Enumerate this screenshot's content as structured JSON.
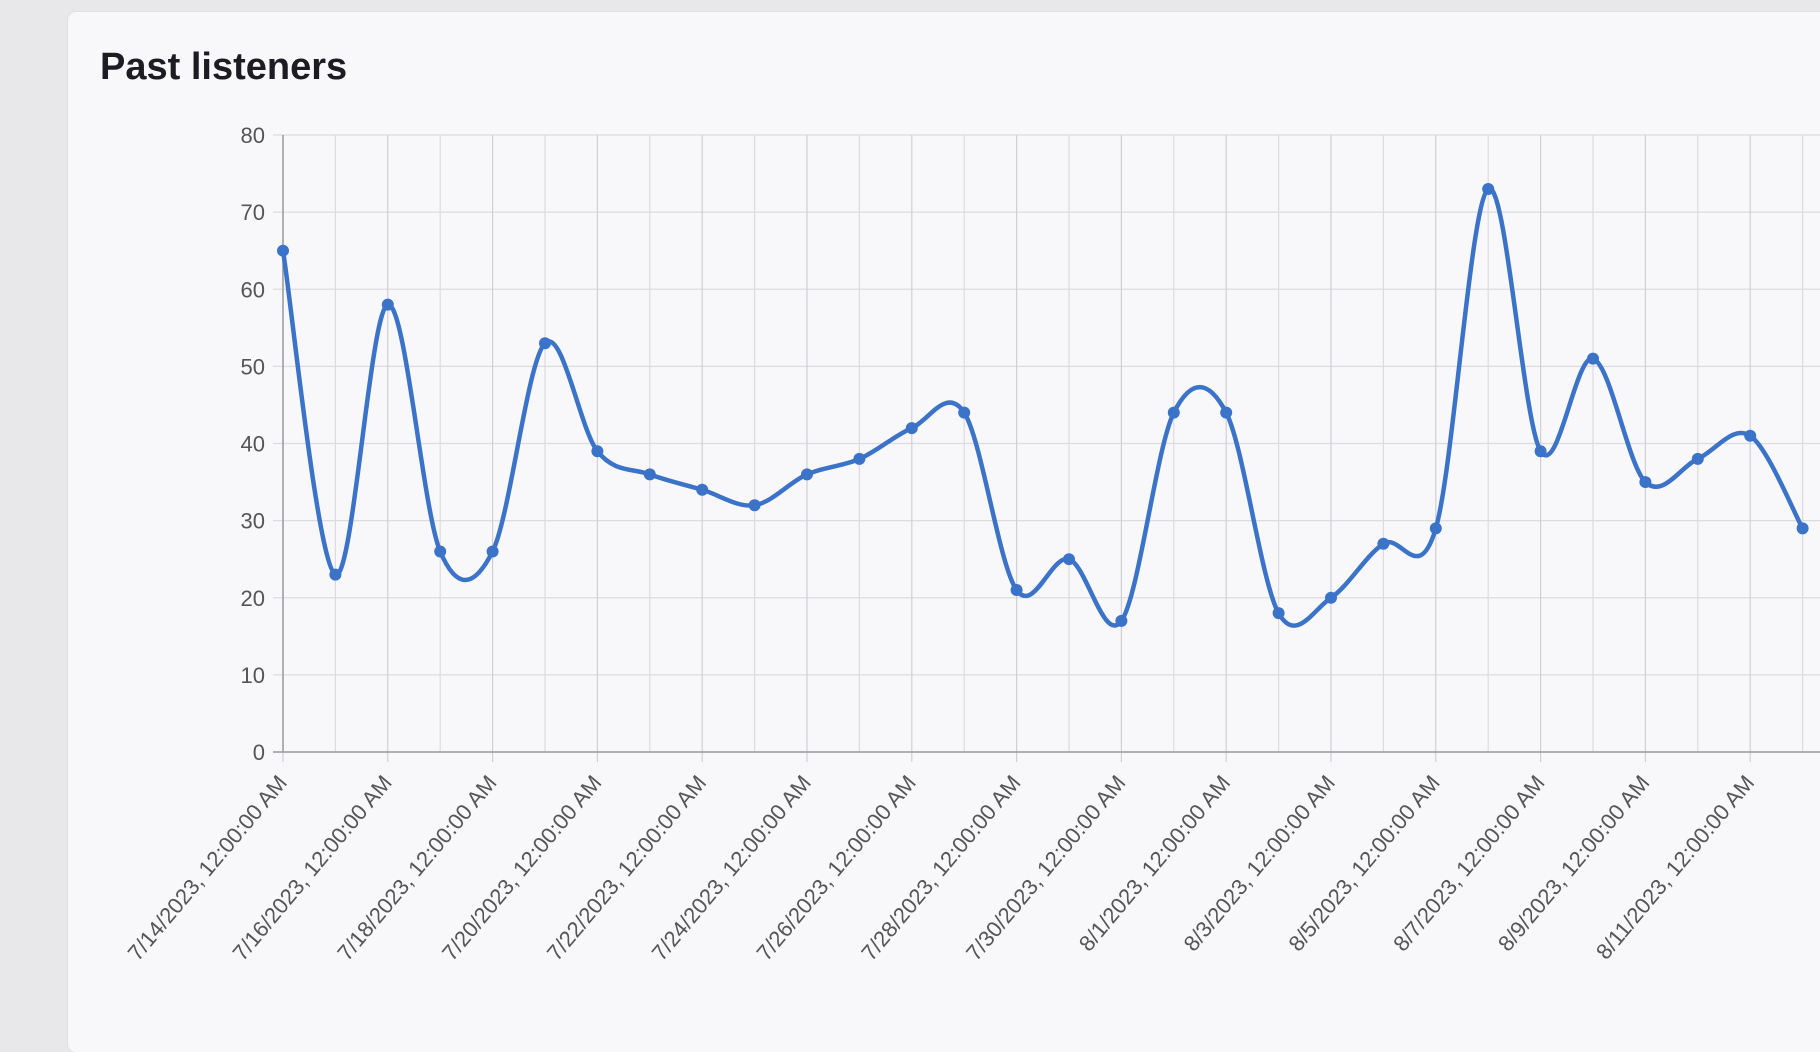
{
  "card": {
    "title": "Past listeners"
  },
  "chart_data": {
    "type": "line",
    "title": "",
    "xlabel": "",
    "ylabel": "",
    "ylim": [
      0,
      80
    ],
    "yticks": [
      0,
      10,
      20,
      30,
      40,
      50,
      60,
      70,
      80
    ],
    "x": [
      "7/14/2023",
      "7/15/2023",
      "7/16/2023",
      "7/17/2023",
      "7/18/2023",
      "7/19/2023",
      "7/20/2023",
      "7/21/2023",
      "7/22/2023",
      "7/23/2023",
      "7/24/2023",
      "7/25/2023",
      "7/26/2023",
      "7/27/2023",
      "7/28/2023",
      "7/29/2023",
      "7/30/2023",
      "7/31/2023",
      "8/1/2023",
      "8/2/2023",
      "8/3/2023",
      "8/4/2023",
      "8/5/2023",
      "8/6/2023",
      "8/7/2023",
      "8/8/2023",
      "8/9/2023",
      "8/10/2023",
      "8/11/2023",
      "8/12/2023"
    ],
    "x_tick_labels": [
      "7/14/2023, 12:00:00 AM",
      "7/16/2023, 12:00:00 AM",
      "7/18/2023, 12:00:00 AM",
      "7/20/2023, 12:00:00 AM",
      "7/22/2023, 12:00:00 AM",
      "7/24/2023, 12:00:00 AM",
      "7/26/2023, 12:00:00 AM",
      "7/28/2023, 12:00:00 AM",
      "7/30/2023, 12:00:00 AM",
      "8/1/2023, 12:00:00 AM",
      "8/3/2023, 12:00:00 AM",
      "8/5/2023, 12:00:00 AM",
      "8/7/2023, 12:00:00 AM",
      "8/9/2023, 12:00:00 AM",
      "8/11/2023, 12:00:00 AM"
    ],
    "series": [
      {
        "values": [
          65,
          23,
          58,
          26,
          26,
          53,
          39,
          36,
          34,
          32,
          36,
          38,
          42,
          44,
          21,
          25,
          17,
          44,
          44,
          18,
          20,
          27,
          29,
          73,
          39,
          51,
          35,
          38,
          41,
          29
        ],
        "color": "#3b73c8"
      }
    ],
    "grid": true,
    "legend": "none"
  }
}
